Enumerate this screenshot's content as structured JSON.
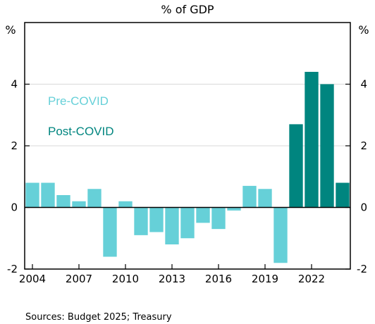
{
  "chart_data": {
    "type": "bar",
    "title": "% of GDP",
    "y_unit_left": "%",
    "y_unit_right": "%",
    "x": [
      2004,
      2005,
      2006,
      2007,
      2008,
      2009,
      2010,
      2011,
      2012,
      2013,
      2014,
      2015,
      2016,
      2017,
      2018,
      2019,
      2020,
      2021,
      2022,
      2023,
      2024
    ],
    "x_tick_labels": [
      "2004",
      "2007",
      "2010",
      "2013",
      "2016",
      "2019",
      "2022"
    ],
    "y_ticks": [
      "4",
      "2",
      "0",
      "-2"
    ],
    "ylim": [
      -2,
      6
    ],
    "grid": "horizontal",
    "series": [
      {
        "name": "Pre-COVID",
        "color": "#66d0d8",
        "x": [
          2004,
          2005,
          2006,
          2007,
          2008,
          2009,
          2010,
          2011,
          2012,
          2013,
          2014,
          2015,
          2016,
          2017,
          2018,
          2019,
          2020
        ],
        "values": [
          0.8,
          0.8,
          0.4,
          0.2,
          0.6,
          -1.6,
          0.2,
          -0.9,
          -0.8,
          -1.2,
          -1.0,
          -0.5,
          -0.7,
          -0.1,
          0.7,
          0.6,
          -1.8
        ]
      },
      {
        "name": "Post-COVID",
        "color": "#00857f",
        "x": [
          2021,
          2022,
          2023,
          2024
        ],
        "values": [
          2.7,
          4.4,
          4.0,
          0.8
        ]
      }
    ],
    "legend_placement": "top-left inside plot",
    "source": "Sources: Budget 2025; Treasury"
  }
}
